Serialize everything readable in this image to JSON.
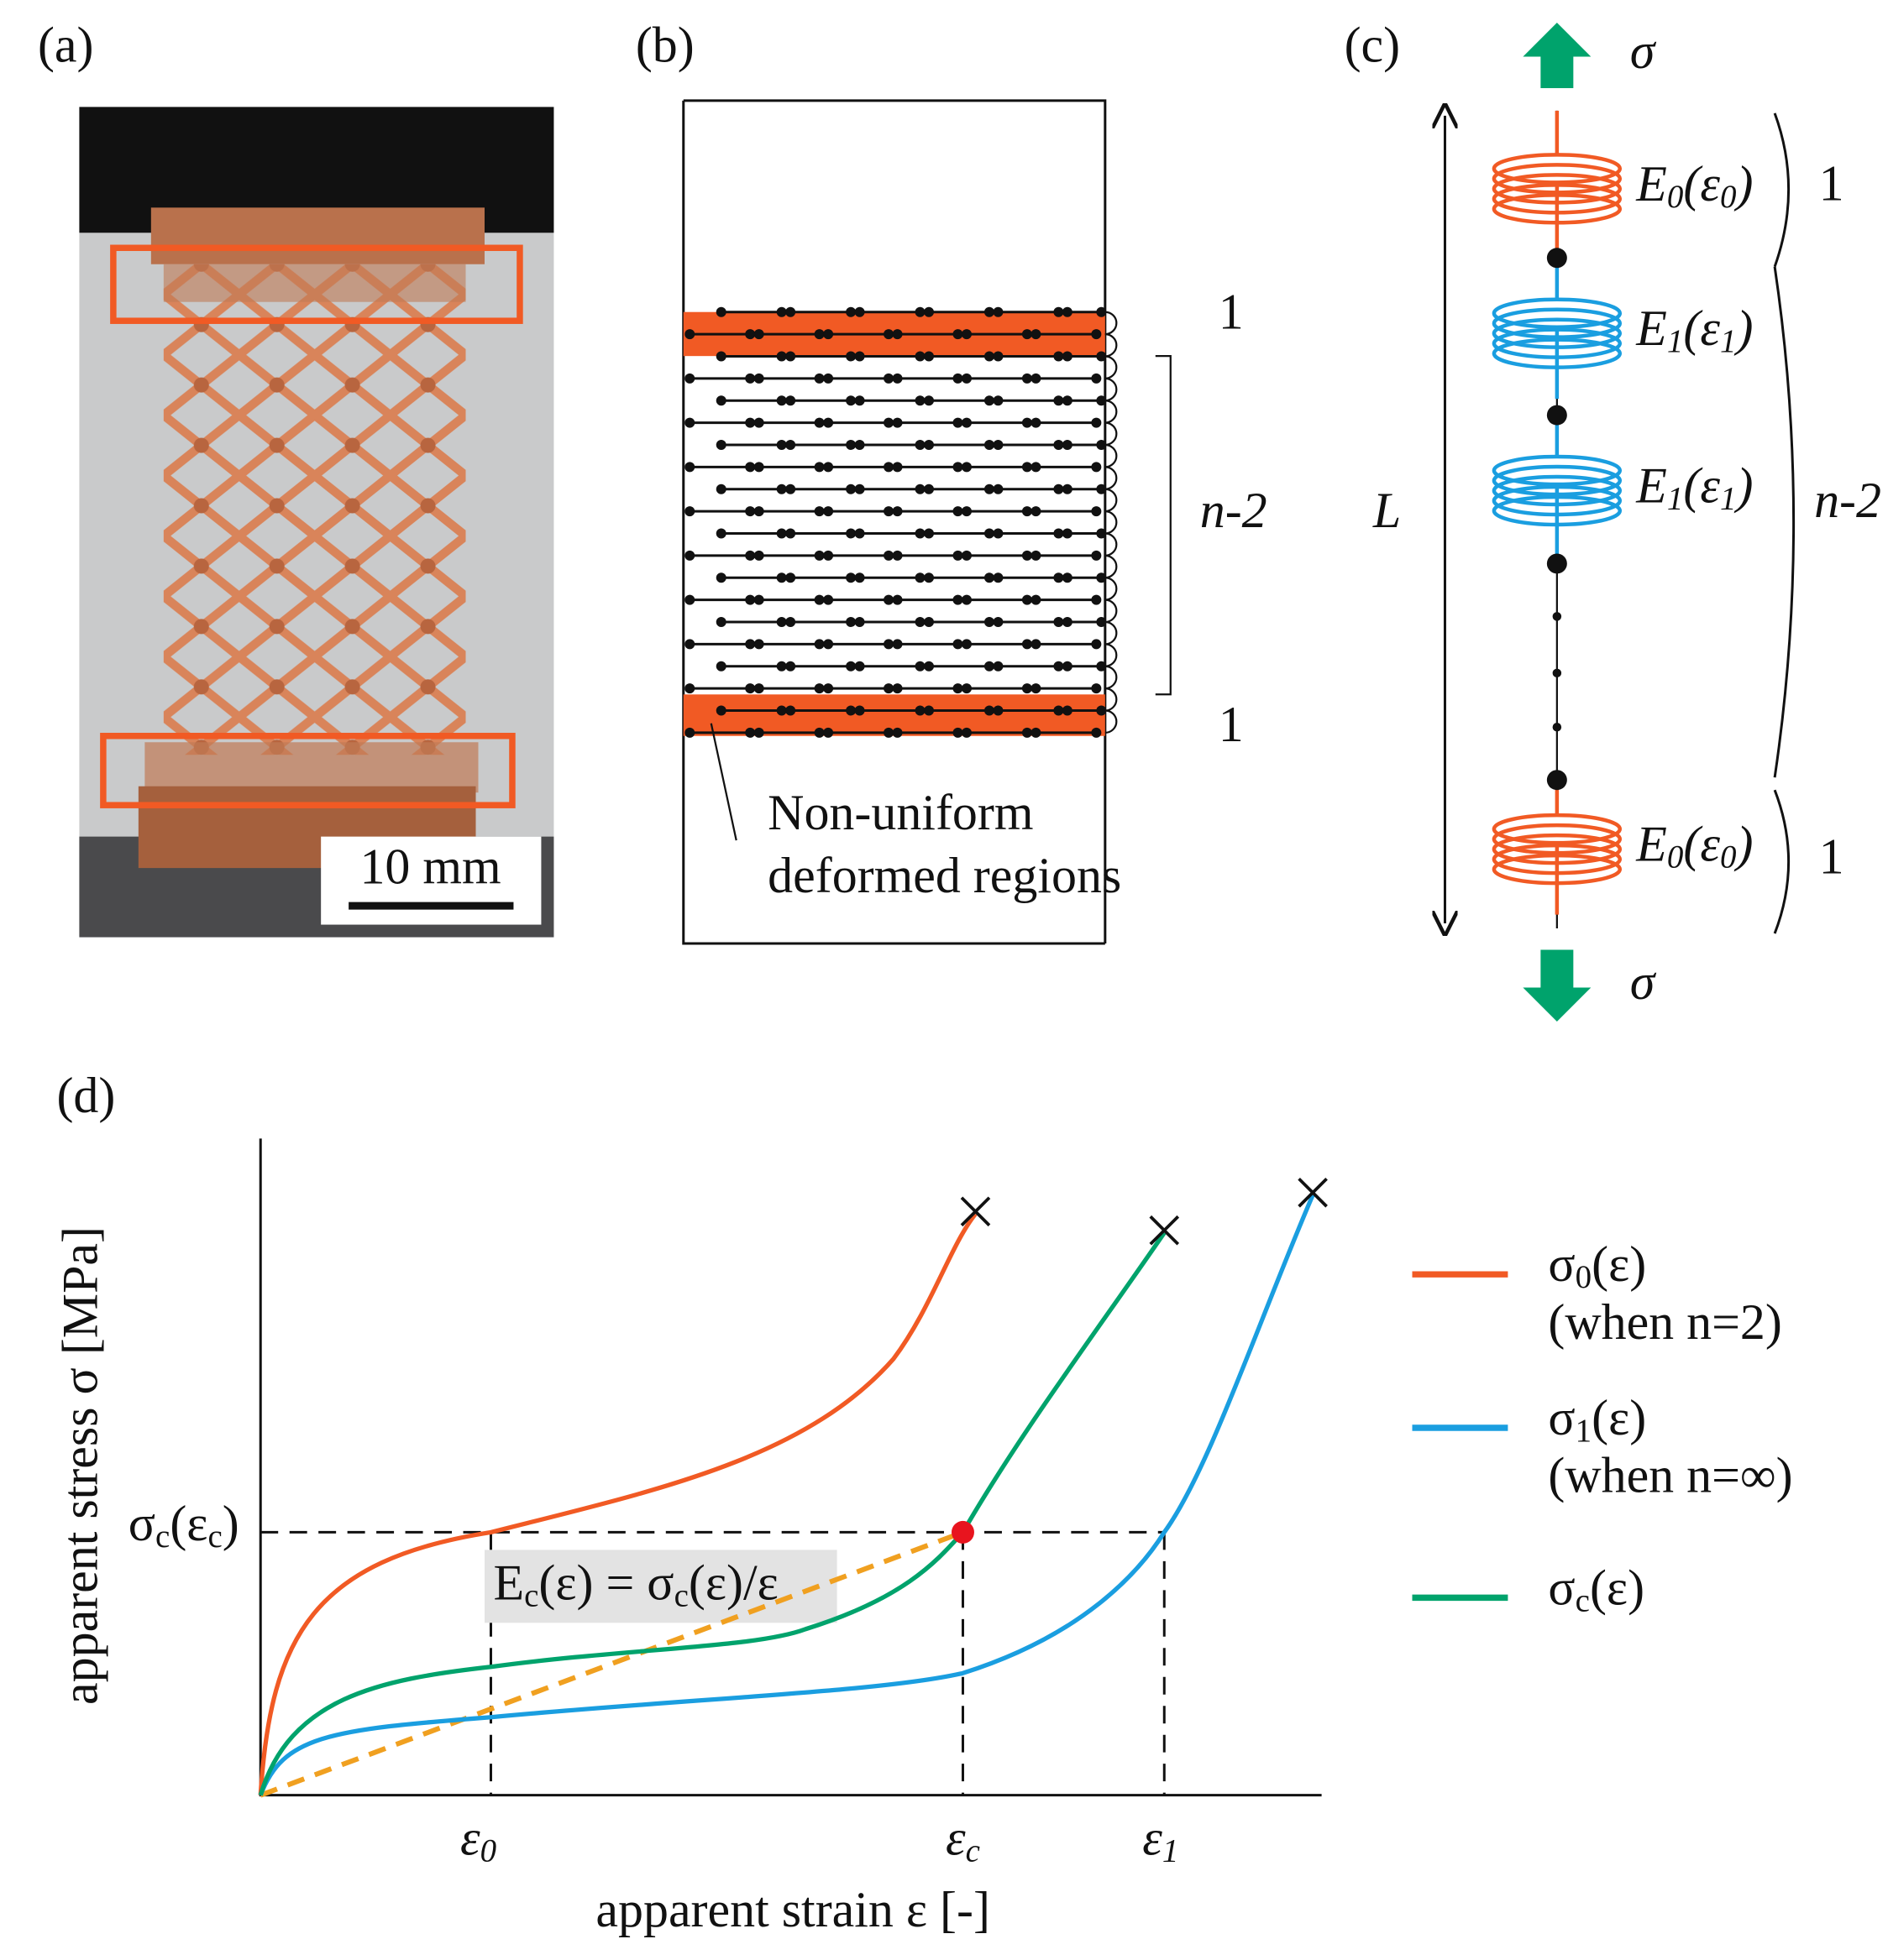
{
  "panels": {
    "a": {
      "label": "(a)",
      "scale_bar": "10 mm"
    },
    "b": {
      "label": "(b)",
      "top_count": "1",
      "middle_count": "n-2",
      "bottom_count": "1",
      "annotation": [
        "Non-uniform",
        "deformed regions"
      ]
    },
    "c": {
      "label": "(c)",
      "stress_top": "σ",
      "stress_bottom": "σ",
      "length": "L",
      "springs": [
        [
          "E",
          "0",
          "(ε",
          "0",
          ")"
        ],
        [
          "E",
          "1",
          "(ε",
          "1",
          ")"
        ],
        [
          "E",
          "1",
          "(ε",
          "1",
          ")"
        ],
        [
          "E",
          "0",
          "(ε",
          "0",
          ")"
        ]
      ],
      "counts": [
        "1",
        "n-2",
        "1"
      ]
    },
    "d": {
      "label": "(d)",
      "y_axis_label": "apparent stress σ [MPa]",
      "x_axis_label": "apparent strain ε [-]",
      "y_marker": [
        "σ",
        "c",
        "(ε",
        "c",
        ")"
      ],
      "x_markers": [
        [
          "ε",
          "0"
        ],
        [
          "ε",
          "c"
        ],
        [
          "ε",
          "1"
        ]
      ],
      "equation": [
        "E",
        "c",
        "(ε) = σ",
        "c",
        "(ε)/ε"
      ],
      "legend": [
        {
          "name": [
            "σ",
            "0",
            "(ε)"
          ],
          "note": "(when n=2)",
          "color": "#f15a24"
        },
        {
          "name": [
            "σ",
            "1",
            "(ε)"
          ],
          "note": "(when n=∞)",
          "color": "#1a9ee0"
        },
        {
          "name": [
            "σ",
            "c",
            "(ε)"
          ],
          "color": "#00a36c"
        }
      ]
    }
  }
}
